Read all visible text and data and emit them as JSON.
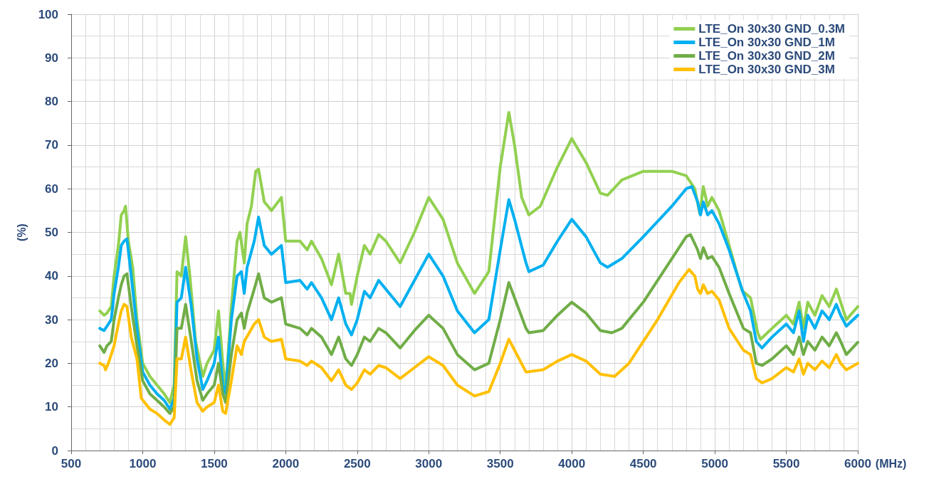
{
  "chart_data": {
    "type": "line",
    "xlabel": "(MHz)",
    "ylabel": "(%)",
    "xlim": [
      500,
      6000
    ],
    "xticks": [
      500,
      1000,
      1500,
      2000,
      2500,
      3000,
      3500,
      4000,
      4500,
      5000,
      5500,
      6000
    ],
    "ylim": [
      0,
      100
    ],
    "yticks": [
      0,
      10,
      20,
      30,
      40,
      50,
      60,
      70,
      80,
      90,
      100
    ],
    "grid": true,
    "legend": "top right",
    "marker": "none",
    "line_style": "solid",
    "series": [
      {
        "name": "LTE_On 30x30 GND_0.3M",
        "color": "#92d050",
        "x": [
          700,
          730,
          750,
          780,
          800,
          830,
          850,
          870,
          880,
          900,
          930,
          960,
          1000,
          1050,
          1100,
          1150,
          1190,
          1220,
          1240,
          1270,
          1300,
          1330,
          1370,
          1420,
          1450,
          1500,
          1530,
          1560,
          1580,
          1620,
          1660,
          1680,
          1710,
          1730,
          1760,
          1790,
          1810,
          1850,
          1900,
          1970,
          2000,
          2100,
          2150,
          2180,
          2250,
          2320,
          2370,
          2420,
          2450,
          2460,
          2500,
          2550,
          2590,
          2650,
          2700,
          2800,
          2900,
          3000,
          3100,
          3200,
          3320,
          3400,
          3420,
          3500,
          3560,
          3600,
          3650,
          3700,
          3780,
          3900,
          4000,
          4100,
          4200,
          4250,
          4350,
          4500,
          4700,
          4800,
          4860,
          4895,
          4920,
          4950,
          4980,
          5030,
          5100,
          5190,
          5250,
          5300,
          5320,
          5400,
          5500,
          5550,
          5590,
          5620,
          5650,
          5700,
          5750,
          5800,
          5850,
          5870,
          5920,
          6000
        ],
        "values": [
          32,
          31,
          31.5,
          33,
          40,
          47,
          54,
          55,
          56,
          48,
          42,
          30,
          20,
          17,
          15,
          13,
          11,
          15,
          41,
          40,
          49,
          40,
          25,
          17,
          20,
          23,
          32,
          20,
          14,
          33,
          48,
          50,
          43,
          52,
          56,
          64,
          64.5,
          57,
          55,
          58,
          48,
          48,
          46,
          48,
          44,
          38,
          45,
          36,
          36,
          33.5,
          40,
          47,
          45,
          49.5,
          48,
          43,
          50,
          58,
          53,
          43,
          36,
          40,
          41,
          65,
          77.5,
          70,
          58,
          54,
          56,
          65,
          71.5,
          66,
          59,
          58.5,
          62,
          64,
          64,
          63,
          60,
          54.3,
          60.5,
          56,
          58,
          55,
          47,
          36.7,
          35,
          27,
          25.5,
          28,
          31,
          29,
          34,
          28,
          34,
          31,
          35.5,
          33,
          37,
          35,
          30,
          33
        ]
      },
      {
        "name": "LTE_On 30x30 GND_1M",
        "color": "#00b0f0",
        "x": [
          700,
          730,
          750,
          780,
          800,
          830,
          850,
          870,
          890,
          920,
          960,
          1000,
          1050,
          1100,
          1150,
          1190,
          1220,
          1240,
          1270,
          1300,
          1340,
          1380,
          1420,
          1450,
          1500,
          1530,
          1560,
          1580,
          1620,
          1660,
          1690,
          1710,
          1730,
          1780,
          1810,
          1850,
          1900,
          1970,
          2000,
          2100,
          2150,
          2180,
          2250,
          2320,
          2370,
          2420,
          2460,
          2500,
          2550,
          2590,
          2650,
          2700,
          2800,
          2900,
          3000,
          3100,
          3200,
          3320,
          3420,
          3500,
          3560,
          3600,
          3680,
          3700,
          3800,
          3900,
          4000,
          4100,
          4200,
          4250,
          4350,
          4500,
          4700,
          4800,
          4840,
          4880,
          4900,
          4920,
          4950,
          4980,
          5030,
          5100,
          5200,
          5250,
          5290,
          5330,
          5400,
          5500,
          5550,
          5590,
          5620,
          5650,
          5700,
          5750,
          5800,
          5850,
          5880,
          5920,
          6000
        ],
        "values": [
          28,
          27.5,
          28.5,
          30,
          36,
          42,
          47,
          48,
          48.5,
          40,
          28,
          18,
          15,
          13,
          11.5,
          9.5,
          12,
          34,
          35,
          42,
          33,
          21,
          14,
          16,
          20,
          26,
          15,
          13,
          30,
          40,
          41,
          36,
          42,
          48,
          53.5,
          47,
          45,
          47,
          38.5,
          39,
          37,
          38.5,
          35,
          30,
          35,
          29,
          26.5,
          30,
          36.5,
          35,
          39,
          37,
          33,
          39,
          45,
          40,
          32,
          27,
          30,
          46,
          57.5,
          53,
          43,
          41,
          42.5,
          48,
          53,
          49,
          43,
          42,
          44,
          49,
          56,
          60,
          60.5,
          57,
          54,
          57,
          54,
          55,
          52,
          46,
          36,
          32,
          25,
          23.5,
          26,
          29,
          27,
          32,
          25,
          31,
          28,
          32,
          30,
          33.5,
          31,
          28.5,
          31
        ]
      },
      {
        "name": "LTE_On 30x30 GND_2M",
        "color": "#70ad47",
        "x": [
          700,
          730,
          750,
          780,
          800,
          830,
          850,
          870,
          890,
          920,
          960,
          1000,
          1050,
          1100,
          1150,
          1190,
          1220,
          1240,
          1270,
          1300,
          1340,
          1380,
          1420,
          1450,
          1500,
          1530,
          1560,
          1580,
          1620,
          1660,
          1690,
          1710,
          1730,
          1780,
          1810,
          1850,
          1900,
          1970,
          2000,
          2100,
          2150,
          2180,
          2250,
          2320,
          2370,
          2420,
          2460,
          2500,
          2550,
          2590,
          2650,
          2700,
          2800,
          2900,
          3000,
          3100,
          3200,
          3320,
          3420,
          3500,
          3560,
          3600,
          3680,
          3700,
          3800,
          3900,
          4000,
          4100,
          4200,
          4280,
          4350,
          4500,
          4700,
          4800,
          4830,
          4880,
          4900,
          4920,
          4950,
          4980,
          5030,
          5100,
          5200,
          5250,
          5290,
          5330,
          5400,
          5500,
          5550,
          5590,
          5620,
          5650,
          5700,
          5750,
          5800,
          5850,
          5880,
          5920,
          6000
        ],
        "values": [
          24,
          22.5,
          24,
          25,
          30,
          35,
          38,
          40,
          40.5,
          33,
          24,
          16,
          13,
          11.5,
          10,
          8.5,
          10,
          28,
          28,
          33.5,
          25,
          16,
          11.5,
          13,
          15,
          20,
          13,
          11,
          22,
          30,
          31.5,
          28,
          31.5,
          37,
          40.5,
          35,
          34,
          35,
          29,
          28,
          26.5,
          28,
          26,
          22,
          26,
          21,
          19.5,
          22,
          26,
          25,
          28,
          27,
          23.5,
          27.5,
          31,
          28,
          22,
          18.5,
          20,
          30,
          38.5,
          35,
          28,
          27,
          27.5,
          31,
          34,
          31.5,
          27.5,
          27,
          28,
          34,
          44,
          49,
          49.5,
          46,
          44,
          46.5,
          44,
          44.5,
          42,
          36,
          28,
          27,
          20,
          19.5,
          21,
          24,
          22,
          26,
          22,
          25,
          23,
          26,
          24,
          27,
          25,
          22,
          24.8
        ]
      },
      {
        "name": "LTE_On 30x30 GND_3M",
        "color": "#ffc000",
        "x": [
          700,
          730,
          740,
          760,
          800,
          830,
          850,
          870,
          890,
          920,
          960,
          990,
          1050,
          1100,
          1150,
          1190,
          1220,
          1240,
          1270,
          1300,
          1340,
          1380,
          1420,
          1450,
          1500,
          1530,
          1560,
          1580,
          1620,
          1660,
          1690,
          1710,
          1780,
          1810,
          1850,
          1900,
          1970,
          2000,
          2100,
          2150,
          2180,
          2250,
          2320,
          2370,
          2420,
          2460,
          2500,
          2550,
          2590,
          2650,
          2700,
          2800,
          2900,
          3000,
          3100,
          3200,
          3320,
          3420,
          3500,
          3560,
          3600,
          3680,
          3800,
          3900,
          4000,
          4100,
          4200,
          4300,
          4400,
          4600,
          4750,
          4820,
          4860,
          4880,
          4900,
          4920,
          4950,
          4980,
          5030,
          5100,
          5200,
          5250,
          5290,
          5330,
          5400,
          5500,
          5550,
          5590,
          5620,
          5650,
          5700,
          5750,
          5800,
          5850,
          5880,
          5920,
          6000
        ],
        "values": [
          20,
          19.5,
          18.5,
          20,
          24,
          29,
          32,
          33.5,
          33,
          26,
          21,
          12,
          9.5,
          8.5,
          7,
          6,
          7.5,
          21,
          21,
          26,
          18,
          11,
          9,
          10,
          11,
          15,
          9,
          8.5,
          16,
          24,
          22,
          25,
          29,
          30,
          26,
          25,
          25.5,
          21,
          20.5,
          19.5,
          20.5,
          19,
          16,
          18.5,
          15,
          14,
          15.5,
          18.5,
          17.5,
          19.5,
          19,
          16.5,
          19,
          21.5,
          19.5,
          15,
          12.5,
          13.5,
          20,
          25.5,
          23,
          18,
          18.5,
          20.5,
          22,
          20.5,
          17.5,
          17,
          20,
          30,
          38.5,
          41.5,
          40,
          37,
          36,
          38,
          36,
          36.5,
          34.5,
          28,
          23,
          22,
          16.5,
          15.5,
          16.5,
          19,
          18,
          21,
          17.5,
          20,
          18.5,
          20.5,
          19,
          22,
          20,
          18.5,
          20
        ]
      }
    ]
  }
}
